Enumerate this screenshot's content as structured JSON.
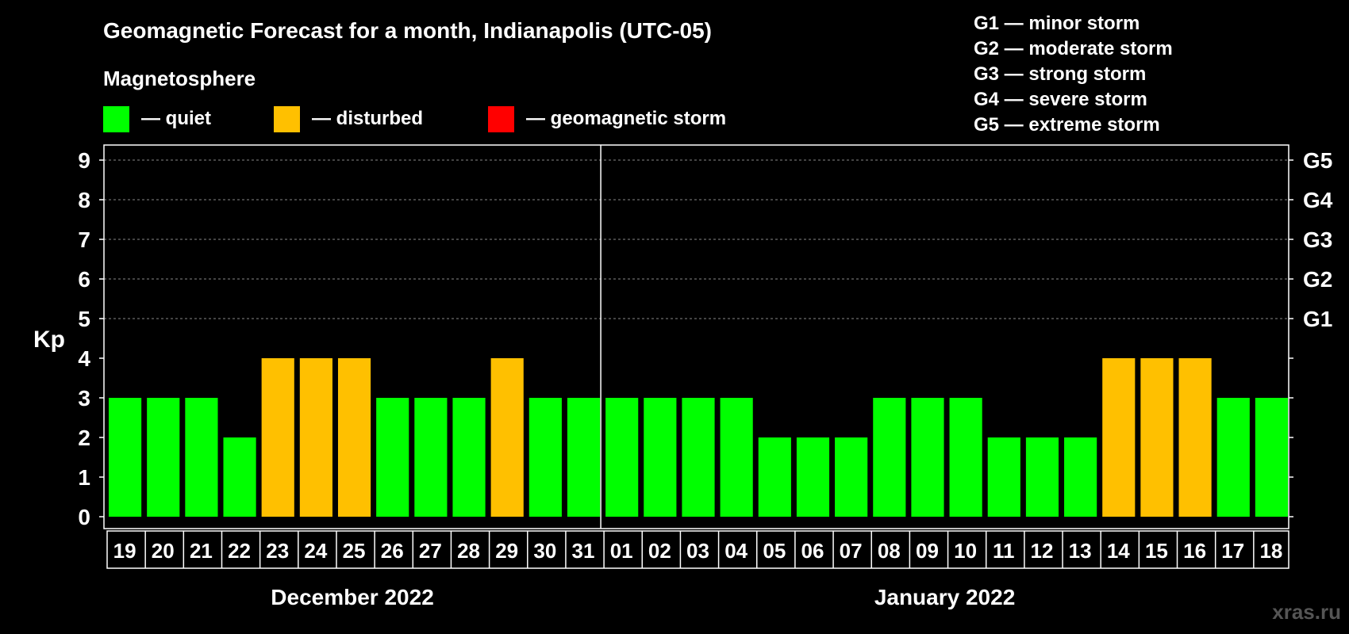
{
  "chart_data": {
    "type": "bar",
    "title": "Geomagnetic Forecast for a month, Indianapolis (UTC-05)",
    "subtitle": "Magnetosphere",
    "ylabel": "Kp",
    "ylim": [
      0,
      9
    ],
    "yticks": [
      "0",
      "1",
      "2",
      "3",
      "4",
      "5",
      "6",
      "7",
      "8",
      "9"
    ],
    "grid": true,
    "legend": [
      {
        "label": "— quiet",
        "color": "#00ff00"
      },
      {
        "label": "— disturbed",
        "color": "#ffc000"
      },
      {
        "label": "— geomagnetic storm",
        "color": "#ff0000"
      }
    ],
    "storm_levels_legend": [
      "G1 — minor storm",
      "G2 — moderate storm",
      "G3 — strong storm",
      "G4 — severe storm",
      "G5 — extreme storm"
    ],
    "right_axis_labels": [
      {
        "kp": 5,
        "label": "G1"
      },
      {
        "kp": 6,
        "label": "G2"
      },
      {
        "kp": 7,
        "label": "G3"
      },
      {
        "kp": 8,
        "label": "G4"
      },
      {
        "kp": 9,
        "label": "G5"
      }
    ],
    "months": [
      {
        "label": "December 2022",
        "days": [
          "19",
          "20",
          "21",
          "22",
          "23",
          "24",
          "25",
          "26",
          "27",
          "28",
          "29",
          "30",
          "31"
        ]
      },
      {
        "label": "January 2022",
        "days": [
          "01",
          "02",
          "03",
          "04",
          "05",
          "06",
          "07",
          "08",
          "09",
          "10",
          "11",
          "12",
          "13",
          "14",
          "15",
          "16",
          "17",
          "18"
        ]
      }
    ],
    "categories": [
      "19",
      "20",
      "21",
      "22",
      "23",
      "24",
      "25",
      "26",
      "27",
      "28",
      "29",
      "30",
      "31",
      "01",
      "02",
      "03",
      "04",
      "05",
      "06",
      "07",
      "08",
      "09",
      "10",
      "11",
      "12",
      "13",
      "14",
      "15",
      "16",
      "17",
      "18"
    ],
    "values": [
      3,
      3,
      3,
      2,
      4,
      4,
      4,
      3,
      3,
      3,
      4,
      3,
      3,
      3,
      3,
      3,
      3,
      2,
      2,
      2,
      3,
      3,
      3,
      2,
      2,
      2,
      4,
      4,
      4,
      3,
      3
    ],
    "status": [
      "quiet",
      "quiet",
      "quiet",
      "quiet",
      "disturbed",
      "disturbed",
      "disturbed",
      "quiet",
      "quiet",
      "quiet",
      "disturbed",
      "quiet",
      "quiet",
      "quiet",
      "quiet",
      "quiet",
      "quiet",
      "quiet",
      "quiet",
      "quiet",
      "quiet",
      "quiet",
      "quiet",
      "quiet",
      "quiet",
      "quiet",
      "disturbed",
      "disturbed",
      "disturbed",
      "quiet",
      "quiet"
    ]
  },
  "colors": {
    "quiet": "#00ff00",
    "disturbed": "#ffc000",
    "storm": "#ff0000"
  },
  "watermark": "xras.ru"
}
